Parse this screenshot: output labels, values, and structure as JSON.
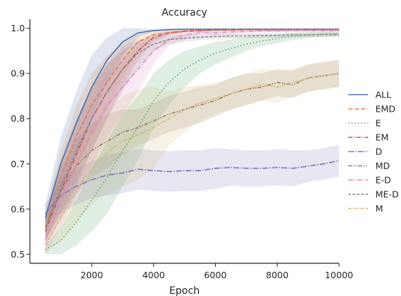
{
  "chart_data": {
    "type": "line",
    "title": "Accuracy",
    "xlabel": "Epoch",
    "ylabel": "",
    "xlim": [
      0,
      10000
    ],
    "ylim": [
      0.48,
      1.02
    ],
    "xticks": [
      2000,
      4000,
      6000,
      8000,
      10000
    ],
    "xtick_labels": [
      "2000",
      "4000",
      "6000",
      "8000",
      "10000"
    ],
    "yticks": [
      0.5,
      0.6,
      0.7,
      0.8,
      0.9,
      1.0
    ],
    "ytick_labels": [
      "0.5",
      "0.6",
      "0.7",
      "0.8",
      "0.9",
      "1.0"
    ],
    "grid": false,
    "legend_position": "right",
    "x": [
      500,
      1000,
      1500,
      2000,
      2500,
      3000,
      3500,
      4000,
      4500,
      5000,
      5500,
      6000,
      6500,
      7000,
      7500,
      8000,
      8500,
      9000,
      9500,
      10000
    ],
    "series": [
      {
        "name": "ALL",
        "color": "#4c72b0",
        "dash": "",
        "values": [
          0.58,
          0.7,
          0.79,
          0.87,
          0.93,
          0.97,
          0.99,
          0.995,
          0.997,
          0.998,
          0.998,
          0.998,
          0.998,
          0.998,
          0.998,
          0.998,
          0.998,
          0.998,
          0.998,
          0.998
        ],
        "band": [
          0.03,
          0.06,
          0.07,
          0.07,
          0.05,
          0.03,
          0.01,
          0.003,
          0.002,
          0.001,
          0.001,
          0.001,
          0.001,
          0.001,
          0.001,
          0.001,
          0.001,
          0.001,
          0.001,
          0.001
        ]
      },
      {
        "name": "EMD",
        "color": "#dd8452",
        "dash": "6,3",
        "values": [
          0.56,
          0.67,
          0.76,
          0.83,
          0.88,
          0.93,
          0.97,
          0.985,
          0.99,
          0.993,
          0.995,
          0.996,
          0.997,
          0.997,
          0.997,
          0.997,
          0.997,
          0.997,
          0.997,
          0.997
        ],
        "band": [
          0.03,
          0.06,
          0.07,
          0.07,
          0.06,
          0.04,
          0.02,
          0.01,
          0.005,
          0.003,
          0.003,
          0.002,
          0.002,
          0.002,
          0.002,
          0.002,
          0.002,
          0.002,
          0.002,
          0.002
        ]
      },
      {
        "name": "E",
        "color": "#55a868",
        "dash": "1.5,3",
        "values": [
          0.51,
          0.53,
          0.57,
          0.62,
          0.67,
          0.73,
          0.78,
          0.84,
          0.88,
          0.91,
          0.93,
          0.945,
          0.955,
          0.965,
          0.972,
          0.977,
          0.982,
          0.985,
          0.987,
          0.988
        ],
        "band": [
          0.01,
          0.03,
          0.05,
          0.07,
          0.08,
          0.08,
          0.07,
          0.06,
          0.05,
          0.04,
          0.03,
          0.025,
          0.02,
          0.015,
          0.012,
          0.01,
          0.008,
          0.007,
          0.006,
          0.006
        ]
      },
      {
        "name": "EM",
        "color": "#c44e52",
        "dash": "6,2,1.5,2",
        "values": [
          0.55,
          0.64,
          0.72,
          0.8,
          0.86,
          0.91,
          0.95,
          0.98,
          0.99,
          0.994,
          0.995,
          0.996,
          0.996,
          0.997,
          0.997,
          0.997,
          0.997,
          0.997,
          0.997,
          0.997
        ],
        "band": [
          0.03,
          0.06,
          0.07,
          0.07,
          0.06,
          0.04,
          0.02,
          0.01,
          0.005,
          0.003,
          0.003,
          0.002,
          0.002,
          0.002,
          0.002,
          0.002,
          0.002,
          0.002,
          0.002,
          0.002
        ]
      },
      {
        "name": "D",
        "color": "#8172b3",
        "dash": "8,2,1.5,2",
        "values": [
          0.59,
          0.63,
          0.65,
          0.665,
          0.675,
          0.68,
          0.688,
          0.685,
          0.683,
          0.685,
          0.685,
          0.69,
          0.692,
          0.69,
          0.69,
          0.692,
          0.69,
          0.695,
          0.7,
          0.707
        ],
        "band": [
          0.02,
          0.04,
          0.04,
          0.04,
          0.045,
          0.045,
          0.045,
          0.045,
          0.045,
          0.045,
          0.045,
          0.045,
          0.04,
          0.04,
          0.04,
          0.04,
          0.04,
          0.035,
          0.035,
          0.035
        ]
      },
      {
        "name": "MD",
        "color": "#937860",
        "dash": "5,2,1.5,2,1.5,2",
        "values": [
          0.56,
          0.64,
          0.695,
          0.73,
          0.75,
          0.77,
          0.78,
          0.795,
          0.81,
          0.82,
          0.83,
          0.84,
          0.855,
          0.865,
          0.87,
          0.88,
          0.875,
          0.89,
          0.895,
          0.9
        ],
        "band": [
          0.03,
          0.05,
          0.06,
          0.06,
          0.06,
          0.05,
          0.04,
          0.04,
          0.04,
          0.04,
          0.04,
          0.035,
          0.035,
          0.035,
          0.03,
          0.03,
          0.03,
          0.03,
          0.03,
          0.03
        ]
      },
      {
        "name": "E-D",
        "color": "#da8bc3",
        "dash": "7,2,1.5,2",
        "values": [
          0.53,
          0.62,
          0.7,
          0.77,
          0.83,
          0.87,
          0.91,
          0.95,
          0.975,
          0.985,
          0.99,
          0.99,
          0.992,
          0.993,
          0.994,
          0.994,
          0.995,
          0.995,
          0.995,
          0.995
        ],
        "band": [
          0.03,
          0.06,
          0.07,
          0.07,
          0.07,
          0.06,
          0.05,
          0.03,
          0.015,
          0.01,
          0.006,
          0.005,
          0.004,
          0.004,
          0.003,
          0.003,
          0.003,
          0.003,
          0.003,
          0.003
        ]
      },
      {
        "name": "ME-D",
        "color": "#8c8c8c",
        "dash": "4,2",
        "values": [
          0.56,
          0.65,
          0.73,
          0.8,
          0.86,
          0.91,
          0.945,
          0.965,
          0.975,
          0.978,
          0.98,
          0.982,
          0.983,
          0.983,
          0.984,
          0.984,
          0.985,
          0.985,
          0.986,
          0.986
        ],
        "band": [
          0.03,
          0.06,
          0.07,
          0.07,
          0.06,
          0.05,
          0.03,
          0.015,
          0.01,
          0.008,
          0.006,
          0.006,
          0.006,
          0.006,
          0.005,
          0.005,
          0.005,
          0.005,
          0.005,
          0.005
        ]
      },
      {
        "name": "M",
        "color": "#ccb974",
        "dash": "4,1.5,1.5,1.5",
        "values": [
          0.52,
          0.58,
          0.64,
          0.69,
          0.725,
          0.75,
          0.765,
          0.78,
          0.8,
          0.82,
          0.835,
          0.845,
          0.855,
          0.865,
          0.875,
          0.87,
          0.88,
          0.89,
          0.895,
          0.9
        ],
        "band": [
          0.02,
          0.05,
          0.07,
          0.08,
          0.09,
          0.1,
          0.1,
          0.09,
          0.06,
          0.05,
          0.04,
          0.035,
          0.035,
          0.035,
          0.035,
          0.035,
          0.03,
          0.03,
          0.03,
          0.03
        ]
      }
    ]
  }
}
